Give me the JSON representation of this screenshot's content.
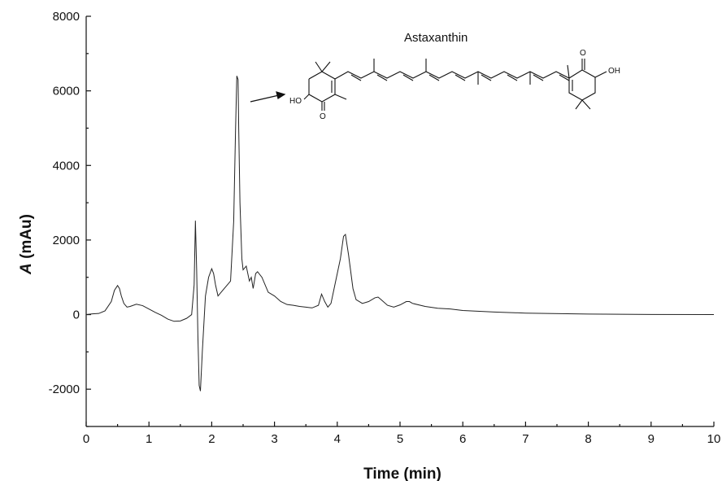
{
  "chart_data": {
    "type": "line",
    "xlabel": "Time (min)",
    "ylabel_italic": "A",
    "ylabel_rest": " (mAu)",
    "xlim": [
      0,
      10
    ],
    "ylim": [
      -3000,
      8000
    ],
    "xticks": [
      0,
      1,
      2,
      3,
      4,
      5,
      6,
      7,
      8,
      9,
      10
    ],
    "yticks": [
      -2000,
      0,
      2000,
      4000,
      6000,
      8000
    ],
    "grid": false,
    "annotations": [
      {
        "text": "Astaxanthin",
        "points_to": [
          2.43,
          6400
        ]
      },
      {
        "text": "HO"
      },
      {
        "text": "O"
      },
      {
        "text": "O"
      },
      {
        "text": "OH"
      }
    ],
    "series": [
      {
        "x": [
          0.0,
          0.1,
          0.2,
          0.3,
          0.4,
          0.45,
          0.5,
          0.53,
          0.56,
          0.6,
          0.65,
          0.7,
          0.8,
          0.9,
          1.0,
          1.1,
          1.2,
          1.3,
          1.4,
          1.5,
          1.6,
          1.68,
          1.72,
          1.74,
          1.76,
          1.78,
          1.8,
          1.82,
          1.85,
          1.9,
          1.95,
          2.0,
          2.03,
          2.06,
          2.1,
          2.15,
          2.2,
          2.25,
          2.3,
          2.35,
          2.38,
          2.4,
          2.42,
          2.43,
          2.45,
          2.48,
          2.5,
          2.55,
          2.6,
          2.63,
          2.66,
          2.7,
          2.73,
          2.8,
          2.9,
          3.0,
          3.1,
          3.2,
          3.3,
          3.4,
          3.5,
          3.6,
          3.7,
          3.75,
          3.8,
          3.85,
          3.9,
          3.95,
          4.0,
          4.05,
          4.1,
          4.13,
          4.18,
          4.25,
          4.3,
          4.4,
          4.5,
          4.6,
          4.65,
          4.7,
          4.8,
          4.9,
          5.0,
          5.1,
          5.15,
          5.2,
          5.4,
          5.6,
          5.8,
          6.0,
          6.5,
          7.0,
          8.0,
          9.0,
          10.0
        ],
        "values": [
          0,
          20,
          30,
          100,
          350,
          650,
          780,
          700,
          500,
          300,
          200,
          220,
          280,
          240,
          150,
          60,
          -20,
          -120,
          -180,
          -170,
          -100,
          0,
          800,
          2520,
          1200,
          -600,
          -1900,
          -2050,
          -1000,
          500,
          1000,
          1230,
          1100,
          800,
          500,
          600,
          700,
          800,
          900,
          2500,
          5000,
          6400,
          6300,
          5000,
          3000,
          1500,
          1200,
          1300,
          900,
          1000,
          700,
          1100,
          1150,
          1000,
          600,
          500,
          350,
          270,
          250,
          220,
          200,
          180,
          250,
          550,
          350,
          200,
          300,
          700,
          1100,
          1500,
          2100,
          2150,
          1600,
          700,
          400,
          300,
          350,
          450,
          470,
          400,
          250,
          200,
          260,
          350,
          350,
          300,
          220,
          170,
          150,
          110,
          70,
          40,
          15,
          5,
          0
        ]
      }
    ]
  }
}
